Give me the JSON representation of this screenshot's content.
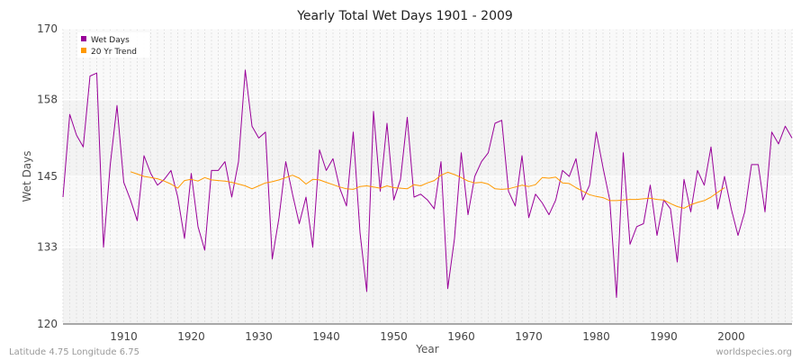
{
  "chart_data": {
    "type": "line",
    "title": "Yearly Total Wet Days 1901 - 2009",
    "xlabel": "Year",
    "ylabel": "Wet Days",
    "xlim": [
      1901,
      2009
    ],
    "ylim": [
      120,
      170
    ],
    "y_ticks": [
      120,
      133,
      145,
      158,
      170
    ],
    "x_ticks": [
      1910,
      1920,
      1930,
      1940,
      1950,
      1960,
      1970,
      1980,
      1990,
      2000
    ],
    "grid": true,
    "legend_position": "top-left",
    "series": [
      {
        "name": "Wet Days",
        "color": "#990099",
        "x": [
          1901,
          1902,
          1903,
          1904,
          1905,
          1906,
          1907,
          1908,
          1909,
          1910,
          1911,
          1912,
          1913,
          1914,
          1915,
          1916,
          1917,
          1918,
          1919,
          1920,
          1921,
          1922,
          1923,
          1924,
          1925,
          1926,
          1927,
          1928,
          1929,
          1930,
          1931,
          1932,
          1933,
          1934,
          1935,
          1936,
          1937,
          1938,
          1939,
          1940,
          1941,
          1942,
          1943,
          1944,
          1945,
          1946,
          1947,
          1948,
          1949,
          1950,
          1951,
          1952,
          1953,
          1954,
          1955,
          1956,
          1957,
          1958,
          1959,
          1960,
          1961,
          1962,
          1963,
          1964,
          1965,
          1966,
          1967,
          1968,
          1969,
          1970,
          1971,
          1972,
          1973,
          1974,
          1975,
          1976,
          1977,
          1978,
          1979,
          1980,
          1981,
          1982,
          1983,
          1984,
          1985,
          1986,
          1987,
          1988,
          1989,
          1990,
          1991,
          1992,
          1993,
          1994,
          1995,
          1996,
          1997,
          1998,
          1999,
          2000,
          2001,
          2002,
          2003,
          2004,
          2005,
          2006,
          2007,
          2008,
          2009
        ],
        "values": [
          141.5,
          155.5,
          152,
          150,
          162,
          162.5,
          133,
          147,
          157,
          144,
          141,
          137.5,
          148.5,
          145.5,
          143.5,
          144.5,
          146,
          141.5,
          134.5,
          145.5,
          136.5,
          132.5,
          146,
          146,
          147.5,
          141.5,
          147.5,
          163,
          153.5,
          151.5,
          152.5,
          131,
          138,
          147.5,
          142,
          137,
          141.5,
          133,
          149.5,
          146,
          148,
          143,
          140,
          152.5,
          135.5,
          125.5,
          156,
          142.5,
          154,
          141,
          144.5,
          155,
          141.5,
          142,
          141,
          139.5,
          147.5,
          126,
          134.5,
          149,
          138.5,
          145,
          147.5,
          149,
          154,
          154.5,
          142.5,
          140,
          148.5,
          138,
          142,
          140.5,
          138.5,
          141,
          146,
          145,
          148,
          141,
          143.5,
          152.5,
          146.5,
          141,
          124.5,
          149,
          133.5,
          136.5,
          137,
          143.5,
          135,
          141,
          139.5,
          130.5,
          144.5,
          139,
          146,
          143.5,
          150,
          139.5,
          145,
          139.5,
          135,
          139,
          147,
          147,
          139,
          152.5,
          150.5,
          153.5,
          151.5
        ]
      },
      {
        "name": "20 Yr Trend",
        "color": "#ff9900",
        "x": [
          1911,
          1912,
          1913,
          1914,
          1915,
          1916,
          1917,
          1918,
          1919,
          1920,
          1921,
          1922,
          1923,
          1924,
          1925,
          1926,
          1927,
          1928,
          1929,
          1930,
          1931,
          1932,
          1933,
          1934,
          1935,
          1936,
          1937,
          1938,
          1939,
          1940,
          1941,
          1942,
          1943,
          1944,
          1945,
          1946,
          1947,
          1948,
          1949,
          1950,
          1951,
          1952,
          1953,
          1954,
          1955,
          1956,
          1957,
          1958,
          1959,
          1960,
          1961,
          1962,
          1963,
          1964,
          1965,
          1966,
          1967,
          1968,
          1969,
          1970,
          1971,
          1972,
          1973,
          1974,
          1975,
          1976,
          1977,
          1978,
          1979,
          1980,
          1981,
          1982,
          1983,
          1984,
          1985,
          1986,
          1987,
          1988,
          1989,
          1990,
          1991,
          1992,
          1993,
          1994,
          1995,
          1996,
          1997,
          1998,
          1999
        ],
        "values": [
          145.8,
          145.4,
          145.0,
          144.8,
          144.6,
          144.2,
          143.7,
          143.0,
          144.3,
          144.5,
          144.2,
          144.8,
          144.4,
          144.3,
          144.2,
          144.0,
          143.7,
          143.4,
          142.9,
          143.4,
          143.9,
          144.1,
          144.4,
          144.8,
          145.2,
          144.7,
          143.7,
          144.5,
          144.4,
          144.0,
          143.6,
          143.2,
          142.9,
          142.8,
          143.3,
          143.4,
          143.2,
          143.0,
          143.4,
          143.1,
          143.0,
          142.9,
          143.6,
          143.4,
          143.9,
          144.3,
          145.2,
          145.7,
          145.3,
          144.8,
          144.2,
          143.9,
          144.0,
          143.7,
          142.9,
          142.8,
          142.9,
          143.2,
          143.5,
          143.3,
          143.6,
          144.8,
          144.7,
          144.9,
          143.9,
          143.8,
          143.1,
          142.5,
          141.9,
          141.6,
          141.4,
          140.9,
          140.9,
          141.0,
          141.1,
          141.1,
          141.2,
          141.3,
          141.1,
          141.0,
          140.4,
          139.9,
          139.6,
          140.2,
          140.6,
          140.9,
          141.5,
          142.3,
          143.1
        ]
      }
    ]
  },
  "footer": {
    "location": "Latitude 4.75 Longitude 6.75",
    "source": "worldspecies.org"
  }
}
